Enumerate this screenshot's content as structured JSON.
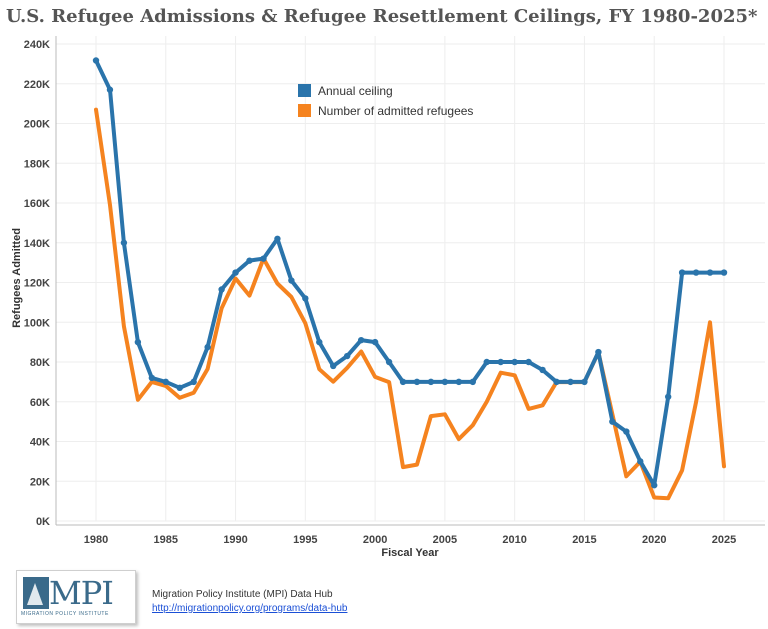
{
  "title": "U.S. Refugee Admissions & Refugee Resettlement Ceilings, FY 1980-2025*",
  "footer": {
    "logo_text": "MPI",
    "logo_subtext": "MIGRATION POLICY INSTITUTE",
    "source_line": "Migration Policy Institute (MPI) Data Hub",
    "source_link": "http://migrationpolicy.org/programs/data-hub"
  },
  "colors": {
    "ceiling": "#2a74ab",
    "admitted": "#f5831f",
    "grid": "#eeeeee",
    "axis_text": "#444444"
  },
  "chart_data": {
    "type": "line",
    "title": "U.S. Refugee Admissions & Refugee Resettlement Ceilings, FY 1980-2025*",
    "xlabel": "Fiscal Year",
    "ylabel": "Refugees Admitted",
    "xlim": [
      1980,
      2025
    ],
    "ylim": [
      0,
      240000
    ],
    "x_ticks": [
      1980,
      1985,
      1990,
      1995,
      2000,
      2005,
      2010,
      2015,
      2020,
      2025
    ],
    "y_ticks": [
      0,
      20000,
      40000,
      60000,
      80000,
      100000,
      120000,
      140000,
      160000,
      180000,
      200000,
      220000,
      240000
    ],
    "y_tick_labels": [
      "0K",
      "20K",
      "40K",
      "60K",
      "80K",
      "100K",
      "120K",
      "140K",
      "160K",
      "180K",
      "200K",
      "220K",
      "240K"
    ],
    "grid": true,
    "legend_position": "top-center",
    "x": [
      1980,
      1981,
      1982,
      1983,
      1984,
      1985,
      1986,
      1987,
      1988,
      1989,
      1990,
      1991,
      1992,
      1993,
      1994,
      1995,
      1996,
      1997,
      1998,
      1999,
      2000,
      2001,
      2002,
      2003,
      2004,
      2005,
      2006,
      2007,
      2008,
      2009,
      2010,
      2011,
      2012,
      2013,
      2014,
      2015,
      2016,
      2017,
      2018,
      2019,
      2020,
      2021,
      2022,
      2023,
      2024,
      2025
    ],
    "series": [
      {
        "name": "Annual ceiling",
        "color": "#2a74ab",
        "markers": true,
        "values": [
          231700,
          217000,
          140000,
          90000,
          72000,
          70000,
          67000,
          70000,
          87500,
          116500,
          125000,
          131000,
          132000,
          142000,
          121000,
          112000,
          90000,
          78000,
          83000,
          91000,
          90000,
          80000,
          70000,
          70000,
          70000,
          70000,
          70000,
          70000,
          80000,
          80000,
          80000,
          80000,
          76000,
          70000,
          70000,
          70000,
          85000,
          50000,
          45000,
          30000,
          18000,
          62500,
          125000,
          125000,
          125000,
          125000
        ]
      },
      {
        "name": "Number of admitted refugees",
        "color": "#f5831f",
        "markers": false,
        "values": [
          207000,
          159000,
          98000,
          61000,
          70000,
          68000,
          62000,
          64500,
          76500,
          107000,
          122000,
          113400,
          132100,
          119500,
          112700,
          99500,
          76400,
          70100,
          77100,
          85300,
          72500,
          69900,
          27100,
          28400,
          52800,
          53700,
          41200,
          48200,
          60100,
          74600,
          73300,
          56400,
          58200,
          69900,
          69900,
          69900,
          84900,
          53700,
          22500,
          29900,
          11800,
          11400,
          25500,
          60000,
          100000,
          27500
        ]
      }
    ]
  }
}
